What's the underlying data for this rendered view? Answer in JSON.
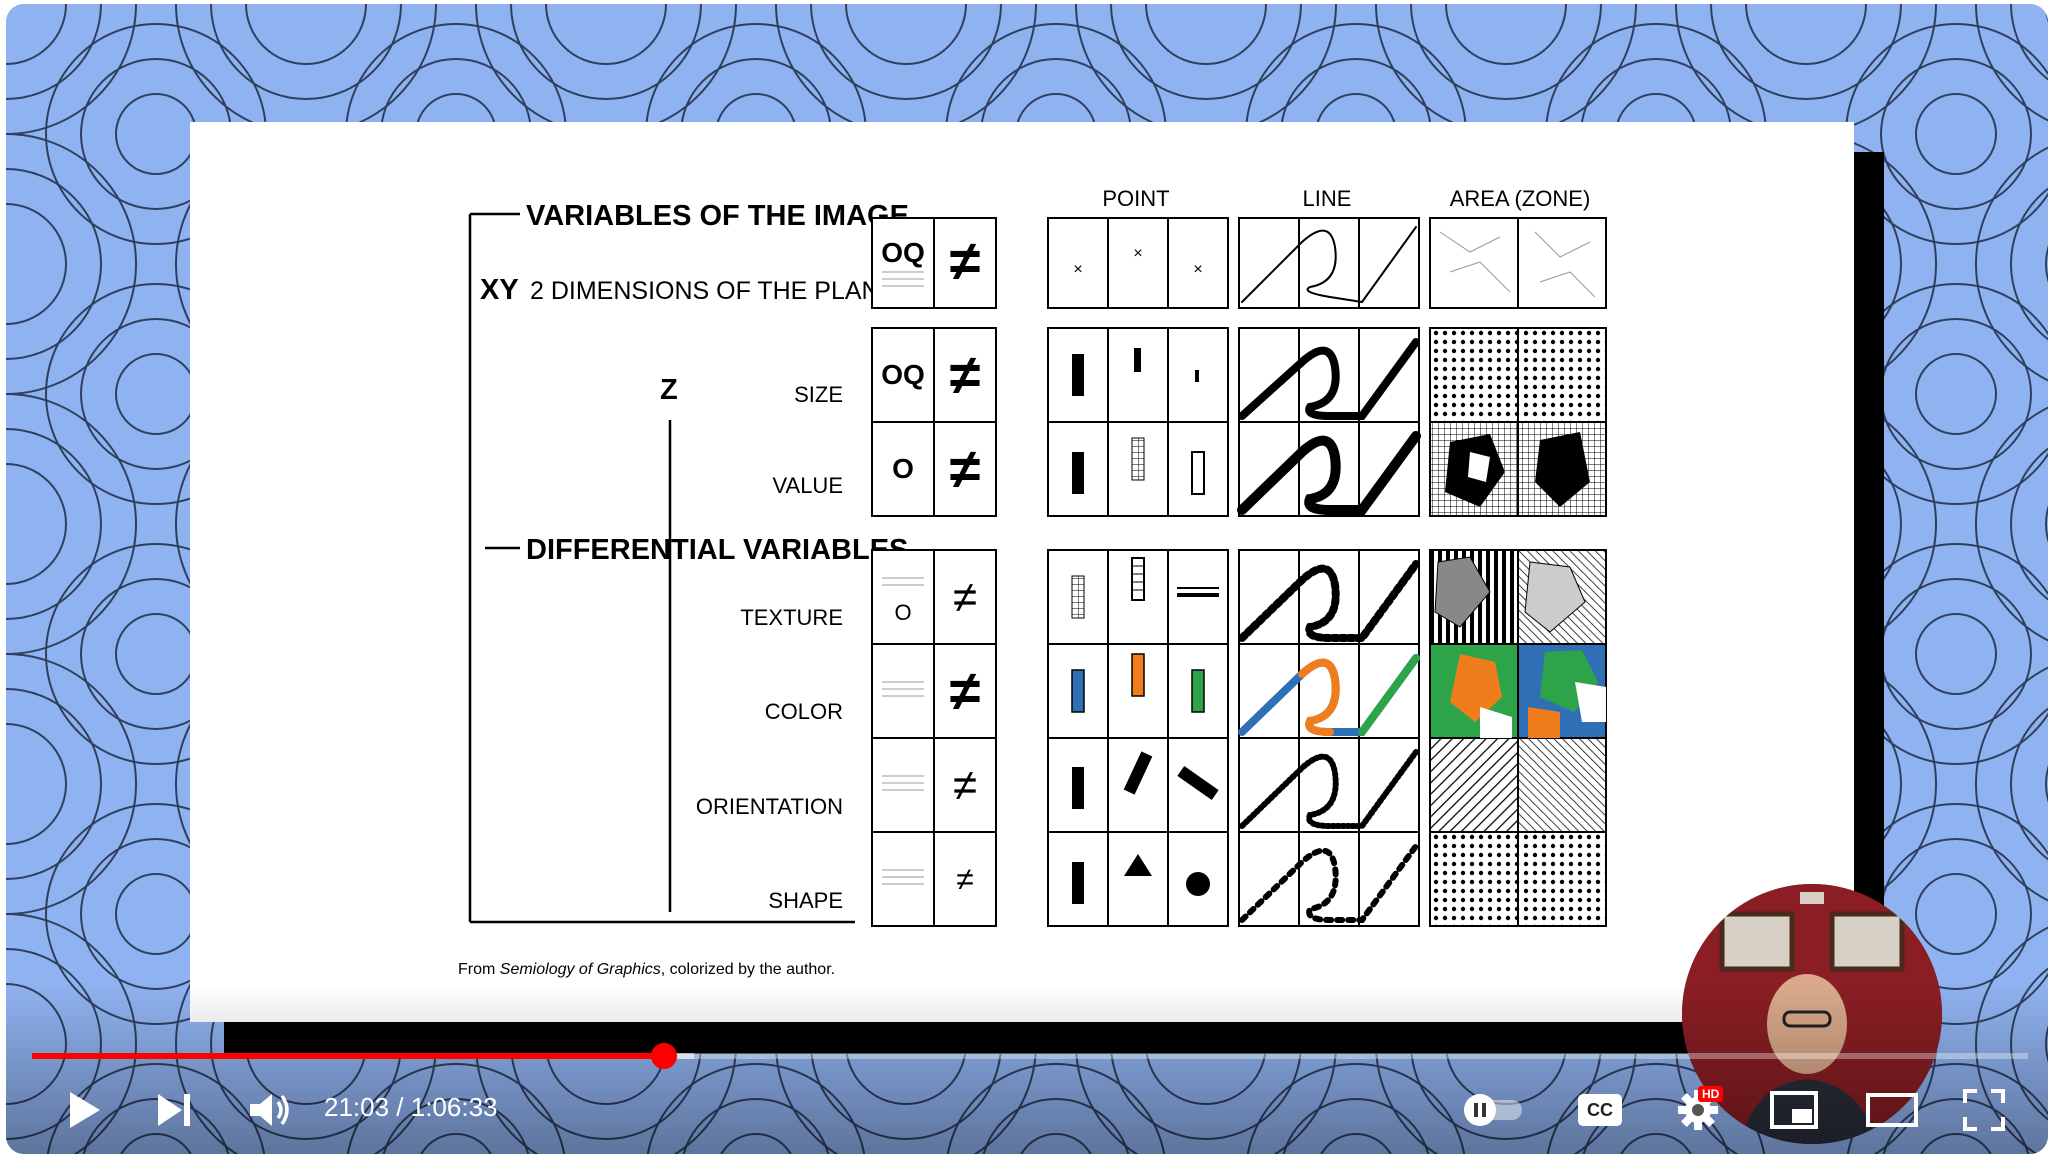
{
  "slide": {
    "header_variables_image": "VARIABLES OF THE IMAGE",
    "xy_label": "XY",
    "xy_desc": "2 DIMENSIONS OF THE PLANE",
    "z_label": "Z",
    "header_differential": "DIFFERENTIAL VARIABLES",
    "rows": [
      {
        "label": "SIZE",
        "level": "OQ"
      },
      {
        "label": "VALUE",
        "level": "O"
      },
      {
        "label": "TEXTURE",
        "level": "O"
      },
      {
        "label": "COLOR",
        "level": ""
      },
      {
        "label": "ORIENTATION",
        "level": ""
      },
      {
        "label": "SHAPE",
        "level": ""
      }
    ],
    "xy_level": "OQ",
    "neq_symbol": "≠",
    "col_point": "POINT",
    "col_line": "LINE",
    "col_area": "AREA (ZONE)",
    "caption_prefix": "From ",
    "caption_italic": "Semiology of Graphics",
    "caption_suffix": ", colorized by the author.",
    "colors": {
      "blue": "#2f6fb6",
      "orange": "#f07d1b",
      "green": "#2ea44a"
    }
  },
  "player": {
    "current_time": "21:03",
    "separator": " / ",
    "duration": "1:06:33",
    "progress_fraction": 0.3164,
    "buffer_fraction": 0.3318,
    "hd_badge": "HD",
    "cc_label": "CC",
    "icons": {
      "play": "play-icon",
      "next": "next-icon",
      "volume": "volume-icon",
      "autoplay": "autoplay-toggle-icon",
      "cc": "captions-icon",
      "settings": "gear-icon",
      "miniplayer": "miniplayer-icon",
      "theater": "theater-icon",
      "fullscreen": "fullscreen-icon"
    },
    "accent_color": "#ff0000"
  }
}
